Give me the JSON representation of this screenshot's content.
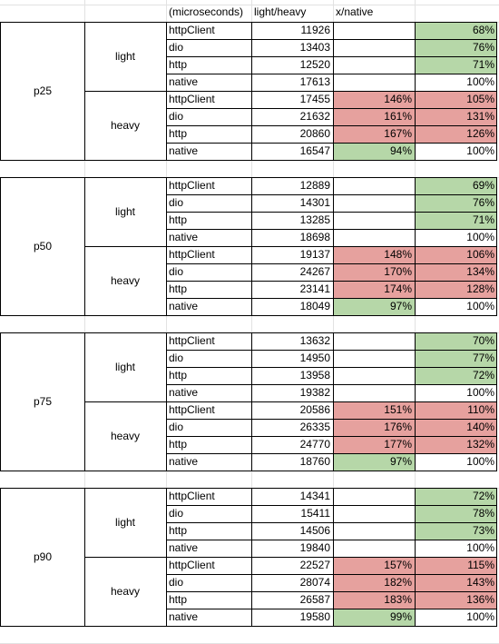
{
  "header": {
    "col_c": "(microseconds)",
    "col_d": "light/heavy",
    "col_e": "x/native"
  },
  "colors": {
    "red": "#e6a19e",
    "green": "#b6d7a8"
  },
  "blocks": [
    {
      "label": "p25",
      "groups": [
        {
          "label": "light",
          "rows": [
            {
              "client": "httpClient",
              "us": "11926",
              "lh": "",
              "lh_color": "",
              "xn": "68%",
              "xn_color": "green"
            },
            {
              "client": "dio",
              "us": "13403",
              "lh": "",
              "lh_color": "",
              "xn": "76%",
              "xn_color": "green"
            },
            {
              "client": "http",
              "us": "12520",
              "lh": "",
              "lh_color": "",
              "xn": "71%",
              "xn_color": "green"
            },
            {
              "client": "native",
              "us": "17613",
              "lh": "",
              "lh_color": "",
              "xn": "100%",
              "xn_color": ""
            }
          ]
        },
        {
          "label": "heavy",
          "rows": [
            {
              "client": "httpClient",
              "us": "17455",
              "lh": "146%",
              "lh_color": "red",
              "xn": "105%",
              "xn_color": "red"
            },
            {
              "client": "dio",
              "us": "21632",
              "lh": "161%",
              "lh_color": "red",
              "xn": "131%",
              "xn_color": "red"
            },
            {
              "client": "http",
              "us": "20860",
              "lh": "167%",
              "lh_color": "red",
              "xn": "126%",
              "xn_color": "red"
            },
            {
              "client": "native",
              "us": "16547",
              "lh": "94%",
              "lh_color": "green",
              "xn": "100%",
              "xn_color": ""
            }
          ]
        }
      ]
    },
    {
      "label": "p50",
      "groups": [
        {
          "label": "light",
          "rows": [
            {
              "client": "httpClient",
              "us": "12889",
              "lh": "",
              "lh_color": "",
              "xn": "69%",
              "xn_color": "green"
            },
            {
              "client": "dio",
              "us": "14301",
              "lh": "",
              "lh_color": "",
              "xn": "76%",
              "xn_color": "green"
            },
            {
              "client": "http",
              "us": "13285",
              "lh": "",
              "lh_color": "",
              "xn": "71%",
              "xn_color": "green"
            },
            {
              "client": "native",
              "us": "18698",
              "lh": "",
              "lh_color": "",
              "xn": "100%",
              "xn_color": ""
            }
          ]
        },
        {
          "label": "heavy",
          "rows": [
            {
              "client": "httpClient",
              "us": "19137",
              "lh": "148%",
              "lh_color": "red",
              "xn": "106%",
              "xn_color": "red"
            },
            {
              "client": "dio",
              "us": "24267",
              "lh": "170%",
              "lh_color": "red",
              "xn": "134%",
              "xn_color": "red"
            },
            {
              "client": "http",
              "us": "23141",
              "lh": "174%",
              "lh_color": "red",
              "xn": "128%",
              "xn_color": "red"
            },
            {
              "client": "native",
              "us": "18049",
              "lh": "97%",
              "lh_color": "green",
              "xn": "100%",
              "xn_color": ""
            }
          ]
        }
      ]
    },
    {
      "label": "p75",
      "groups": [
        {
          "label": "light",
          "rows": [
            {
              "client": "httpClient",
              "us": "13632",
              "lh": "",
              "lh_color": "",
              "xn": "70%",
              "xn_color": "green"
            },
            {
              "client": "dio",
              "us": "14950",
              "lh": "",
              "lh_color": "",
              "xn": "77%",
              "xn_color": "green"
            },
            {
              "client": "http",
              "us": "13958",
              "lh": "",
              "lh_color": "",
              "xn": "72%",
              "xn_color": "green"
            },
            {
              "client": "native",
              "us": "19382",
              "lh": "",
              "lh_color": "",
              "xn": "100%",
              "xn_color": ""
            }
          ]
        },
        {
          "label": "heavy",
          "rows": [
            {
              "client": "httpClient",
              "us": "20586",
              "lh": "151%",
              "lh_color": "red",
              "xn": "110%",
              "xn_color": "red"
            },
            {
              "client": "dio",
              "us": "26335",
              "lh": "176%",
              "lh_color": "red",
              "xn": "140%",
              "xn_color": "red"
            },
            {
              "client": "http",
              "us": "24770",
              "lh": "177%",
              "lh_color": "red",
              "xn": "132%",
              "xn_color": "red"
            },
            {
              "client": "native",
              "us": "18760",
              "lh": "97%",
              "lh_color": "green",
              "xn": "100%",
              "xn_color": ""
            }
          ]
        }
      ]
    },
    {
      "label": "p90",
      "groups": [
        {
          "label": "light",
          "rows": [
            {
              "client": "httpClient",
              "us": "14341",
              "lh": "",
              "lh_color": "",
              "xn": "72%",
              "xn_color": "green"
            },
            {
              "client": "dio",
              "us": "15411",
              "lh": "",
              "lh_color": "",
              "xn": "78%",
              "xn_color": "green"
            },
            {
              "client": "http",
              "us": "14506",
              "lh": "",
              "lh_color": "",
              "xn": "73%",
              "xn_color": "green"
            },
            {
              "client": "native",
              "us": "19840",
              "lh": "",
              "lh_color": "",
              "xn": "100%",
              "xn_color": ""
            }
          ]
        },
        {
          "label": "heavy",
          "rows": [
            {
              "client": "httpClient",
              "us": "22527",
              "lh": "157%",
              "lh_color": "red",
              "xn": "115%",
              "xn_color": "red"
            },
            {
              "client": "dio",
              "us": "28074",
              "lh": "182%",
              "lh_color": "red",
              "xn": "143%",
              "xn_color": "red"
            },
            {
              "client": "http",
              "us": "26587",
              "lh": "183%",
              "lh_color": "red",
              "xn": "136%",
              "xn_color": "red"
            },
            {
              "client": "native",
              "us": "19580",
              "lh": "99%",
              "lh_color": "green",
              "xn": "100%",
              "xn_color": ""
            }
          ]
        }
      ]
    }
  ]
}
